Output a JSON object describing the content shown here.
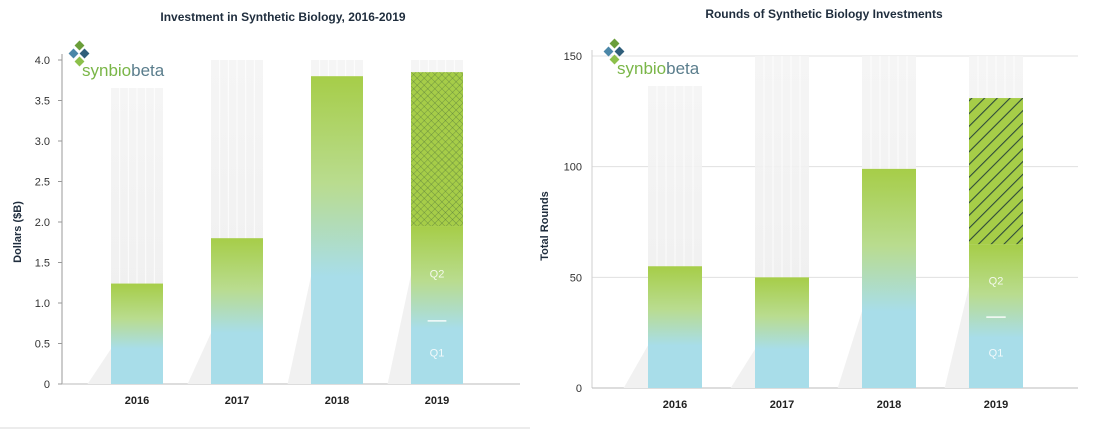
{
  "logo": {
    "word_left": "synbio",
    "word_right": "beta",
    "color_left": "#7ab648",
    "color_right": "#5a7d8c"
  },
  "colors": {
    "green_top": "#a6cd48",
    "cyan_bottom": "#a8dde9",
    "hatch": "#2d4a3a",
    "grid": "#e2e2e2"
  },
  "chart_data": [
    {
      "type": "bar",
      "title": "Investment in Synthetic Biology, 2016-2019",
      "ylabel": "Dollars ($B)",
      "xlabel": "",
      "ylim": [
        0,
        4.0
      ],
      "yticks": [
        "0",
        "0.5",
        "1.0",
        "1.5",
        "2.0",
        "2.5",
        "3.0",
        "3.5",
        "4.0"
      ],
      "ytick_values": [
        0,
        0.5,
        1.0,
        1.5,
        2.0,
        2.5,
        3.0,
        3.5,
        4.0
      ],
      "categories": [
        "2016",
        "2017",
        "2018",
        "2019"
      ],
      "values": [
        1.24,
        1.8,
        3.8,
        3.85
      ],
      "last_bar_solid": 1.95,
      "last_bar_q1_top": 0.78,
      "last_bar_labels": [
        "Q1",
        "Q2"
      ],
      "hatch_style": "crosshatch",
      "grid": false
    },
    {
      "type": "bar",
      "title": "Rounds of Synthetic Biology Investments",
      "ylabel": "Total Rounds",
      "xlabel": "",
      "ylim": [
        0,
        150
      ],
      "yticks": [
        "0",
        "50",
        "100",
        "150"
      ],
      "ytick_values": [
        0,
        50,
        100,
        150
      ],
      "categories": [
        "2016",
        "2017",
        "2018",
        "2019"
      ],
      "values": [
        55,
        50,
        99,
        131
      ],
      "last_bar_solid": 65,
      "last_bar_q1_top": 32,
      "last_bar_labels": [
        "Q1",
        "Q2"
      ],
      "hatch_style": "diagonal",
      "grid": true
    }
  ]
}
